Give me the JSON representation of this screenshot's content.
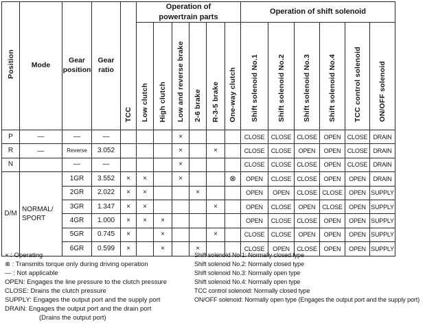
{
  "table": {
    "corner": {
      "position": "Position",
      "mode": "Mode",
      "gear_position": "Gear\nposition",
      "gear_ratio": "Gear\nratio",
      "tcc": "TCC"
    },
    "groups": {
      "powertrain": "Operation of\npowertrain parts",
      "solenoid": "Operation of shift solenoid"
    },
    "powertrain_columns": [
      "Low clutch",
      "High clutch",
      "Low and reverse brake",
      "2-6 brake",
      "R-3-5 brake",
      "One-way clutch"
    ],
    "solenoid_columns": [
      "Shift solenoid No.1",
      "Shift solenoid No.2",
      "Shift solenoid No.3",
      "Shift solenoid No.4",
      "TCC control solenoid",
      "ON/OFF solenoid"
    ],
    "rows": [
      {
        "position": "P",
        "mode": "—",
        "gear": "—",
        "ratio": "—",
        "parts": [
          "",
          "",
          "",
          "×",
          "",
          "",
          ""
        ],
        "solenoids": [
          "CLOSE",
          "CLOSE",
          "CLOSE",
          "OPEN",
          "CLOSE",
          "DRAIN"
        ]
      },
      {
        "position": "R",
        "mode": "—",
        "gear": "Reverse",
        "gear_small": true,
        "ratio": "3.052",
        "parts": [
          "",
          "",
          "",
          "×",
          "",
          "×",
          ""
        ],
        "solenoids": [
          "CLOSE",
          "CLOSE",
          "OPEN",
          "OPEN",
          "CLOSE",
          "DRAIN"
        ]
      },
      {
        "position": "N",
        "mode": "",
        "gear": "—",
        "ratio": "—",
        "parts": [
          "",
          "",
          "",
          "×",
          "",
          "",
          ""
        ],
        "solenoids": [
          "CLOSE",
          "CLOSE",
          "CLOSE",
          "OPEN",
          "CLOSE",
          "DRAIN"
        ]
      },
      {
        "position": "D/M",
        "position_span": 6,
        "mode": "NORMAL/\nSPORT",
        "mode_span": 6,
        "gear": "1GR",
        "ratio": "3.552",
        "parts": [
          "×",
          "×",
          "",
          "×",
          "",
          "",
          "⊗"
        ],
        "solenoids": [
          "OPEN",
          "CLOSE",
          "CLOSE",
          "OPEN",
          "OPEN",
          "DRAIN"
        ]
      },
      {
        "gear": "2GR",
        "ratio": "2.022",
        "parts": [
          "×",
          "×",
          "",
          "",
          "×",
          "",
          ""
        ],
        "solenoids": [
          "OPEN",
          "OPEN",
          "CLOSE",
          "CLOSE",
          "OPEN",
          "SUPPLY"
        ]
      },
      {
        "gear": "3GR",
        "ratio": "1.347",
        "parts": [
          "×",
          "×",
          "",
          "",
          "",
          "×",
          ""
        ],
        "solenoids": [
          "OPEN",
          "CLOSE",
          "OPEN",
          "CLOSE",
          "OPEN",
          "SUPPLY"
        ]
      },
      {
        "gear": "4GR",
        "ratio": "1.000",
        "parts": [
          "×",
          "×",
          "×",
          "",
          "",
          "",
          ""
        ],
        "solenoids": [
          "OPEN",
          "CLOSE",
          "CLOSE",
          "OPEN",
          "OPEN",
          "SUPPLY"
        ]
      },
      {
        "gear": "5GR",
        "ratio": "0.745",
        "parts": [
          "×",
          "",
          "×",
          "",
          "",
          "×",
          ""
        ],
        "solenoids": [
          "CLOSE",
          "CLOSE",
          "OPEN",
          "OPEN",
          "OPEN",
          "SUPPLY"
        ]
      },
      {
        "gear": "6GR",
        "ratio": "0.599",
        "parts": [
          "×",
          "",
          "×",
          "",
          "×",
          "",
          ""
        ],
        "solenoids": [
          "CLOSE",
          "OPEN",
          "CLOSE",
          "OPEN",
          "OPEN",
          "SUPPLY"
        ]
      }
    ]
  },
  "legend_left": [
    {
      "text": "× : Operating"
    },
    {
      "text": "⊗ : Transmits torque only during driving operation"
    },
    {
      "text": "— : Not applicable"
    },
    {
      "text": "OPEN: Engages the line pressure to the clutch pressure"
    },
    {
      "text": "CLOSE: Drains the clutch pressure"
    },
    {
      "text": "SUPPLY: Engages the output port and the supply port"
    },
    {
      "text": "DRAIN: Engages the output port and the drain port"
    },
    {
      "text": "(Drains the output port)",
      "indent": true
    }
  ],
  "legend_right": [
    {
      "text": "Shift solenoid No.1: Normally closed type"
    },
    {
      "text": "Shift solenoid No.2: Normally closed type"
    },
    {
      "text": "Shift solenoid No.3: Normally open type"
    },
    {
      "text": "Shift solenoid No.4: Normally open type"
    },
    {
      "text": "TCC control solenoid: Normally closed type"
    },
    {
      "text": "ON/OFF solenoid: Normally open type (Engages the output port and the supply port)"
    }
  ]
}
